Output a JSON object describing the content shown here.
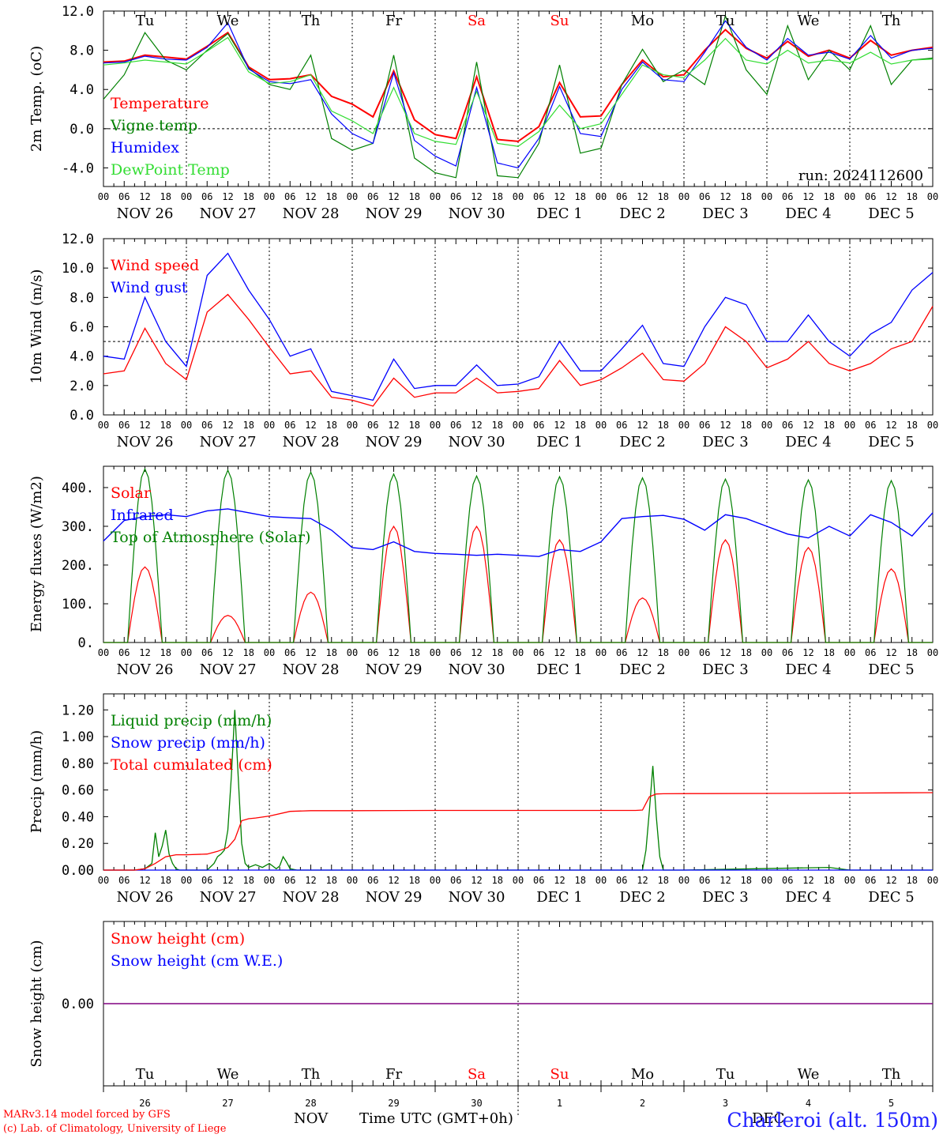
{
  "run_label": "run: 2024112600",
  "footer": {
    "model": "MARv3.14 model forced by GFS",
    "credit": "(c) Lab. of Climatology, University of Liege"
  },
  "station": "Charleroi (alt. 150m)",
  "time_axis_label": "Time UTC (GMT+0h)",
  "months": [
    "NOV",
    "DEC"
  ],
  "days": {
    "weekdays": [
      "Tu",
      "We",
      "Th",
      "Fr",
      "Sa",
      "Su",
      "Mo",
      "Tu",
      "We",
      "Th"
    ],
    "weekend_flags": [
      false,
      false,
      false,
      false,
      true,
      true,
      false,
      false,
      false,
      false
    ],
    "dates": [
      "NOV 26",
      "NOV 27",
      "NOV 28",
      "NOV 29",
      "NOV 30",
      "DEC  1",
      "DEC  2",
      "DEC  3",
      "DEC  4",
      "DEC  5"
    ],
    "day_numbers": [
      "26",
      "27",
      "28",
      "29",
      "30",
      "1",
      "2",
      "3",
      "4",
      "5"
    ],
    "hour_ticks": [
      "00",
      "06",
      "12",
      "18"
    ],
    "final_hour": "00"
  },
  "colors": {
    "red": "#ff0000",
    "dark_green": "#008000",
    "blue": "#0000ff",
    "light_green": "#33dd33",
    "purple": "#800080",
    "weekend": "#ff0000"
  },
  "chart_data": [
    {
      "type": "line",
      "ylabel": "2m Temp. (oC)",
      "ylim": [
        -5.9,
        12.0
      ],
      "yticks": [
        -4.0,
        0.0,
        4.0,
        8.0,
        12.0
      ],
      "ytick_labels": [
        "-4.0",
        "0.0",
        "4.0",
        "8.0",
        "12.0"
      ],
      "reference_line": 0.0,
      "x_unit": "hours since 2024-11-26 00 UTC",
      "x": [
        0,
        6,
        12,
        18,
        24,
        30,
        36,
        42,
        48,
        54,
        60,
        66,
        72,
        78,
        84,
        90,
        96,
        102,
        108,
        114,
        120,
        126,
        132,
        138,
        144,
        150,
        156,
        162,
        168,
        174,
        180,
        186,
        192,
        198,
        204,
        210,
        216,
        222,
        228,
        234,
        240
      ],
      "legend_position": "top-left",
      "series": [
        {
          "name": "Temperature",
          "color_key": "red",
          "values": [
            6.8,
            6.9,
            7.5,
            7.3,
            7.1,
            8.4,
            9.8,
            6.3,
            5.0,
            5.1,
            5.5,
            3.3,
            2.5,
            1.2,
            5.9,
            0.9,
            -0.6,
            -1.0,
            5.3,
            -1.1,
            -1.3,
            0.2,
            4.7,
            1.2,
            1.3,
            4.5,
            7.0,
            5.3,
            5.5,
            8.0,
            10.1,
            8.2,
            7.2,
            8.9,
            7.4,
            8.0,
            7.2,
            9.0,
            7.5,
            8.0,
            8.3
          ]
        },
        {
          "name": "Vigne temp",
          "color_key": "dark_green",
          "values": [
            3.0,
            5.5,
            9.8,
            7.0,
            6.0,
            8.0,
            9.7,
            6.2,
            4.5,
            4.0,
            7.5,
            -1.0,
            -2.2,
            -1.5,
            7.5,
            -3.0,
            -4.5,
            -5.0,
            6.8,
            -4.8,
            -5.0,
            -1.5,
            6.5,
            -2.5,
            -2.0,
            4.5,
            8.1,
            4.8,
            6.0,
            4.5,
            11.5,
            6.0,
            3.5,
            10.5,
            5.0,
            8.0,
            6.0,
            10.5,
            4.5,
            7.0,
            7.2
          ]
        },
        {
          "name": "Humidex",
          "color_key": "blue",
          "values": [
            6.7,
            6.8,
            7.4,
            7.1,
            7.0,
            8.3,
            10.8,
            6.1,
            4.8,
            4.6,
            5.0,
            1.5,
            -0.5,
            -1.5,
            5.7,
            -1.2,
            -2.8,
            -3.8,
            4.2,
            -3.5,
            -4.0,
            -1.0,
            4.3,
            -0.5,
            -0.8,
            4.0,
            6.8,
            5.0,
            4.8,
            7.8,
            11.0,
            8.3,
            7.0,
            9.2,
            7.5,
            7.8,
            7.1,
            9.5,
            7.2,
            8.0,
            8.2
          ]
        },
        {
          "name": "DewPoint Temp",
          "color_key": "light_green",
          "values": [
            6.5,
            6.7,
            7.0,
            6.8,
            6.6,
            7.9,
            9.3,
            5.8,
            4.6,
            4.8,
            5.5,
            1.8,
            0.8,
            -0.5,
            4.2,
            -0.5,
            -1.3,
            -1.6,
            3.8,
            -1.5,
            -1.8,
            -0.3,
            2.4,
            0.0,
            0.5,
            3.5,
            6.5,
            5.5,
            5.2,
            7.0,
            9.2,
            7.0,
            6.6,
            8.0,
            6.7,
            7.0,
            6.7,
            7.8,
            6.6,
            7.0,
            7.1
          ]
        }
      ]
    },
    {
      "type": "line",
      "ylabel": "10m Wind (m/s)",
      "ylim": [
        0.0,
        12.0
      ],
      "yticks": [
        0.0,
        2.0,
        4.0,
        6.0,
        8.0,
        10.0,
        12.0
      ],
      "ytick_labels": [
        "0.0",
        "2.0",
        "4.0",
        "6.0",
        "8.0",
        "10.0",
        "12.0"
      ],
      "reference_line": 5.0,
      "x_unit": "hours since 2024-11-26 00 UTC",
      "x": [
        0,
        6,
        12,
        18,
        24,
        30,
        36,
        42,
        48,
        54,
        60,
        66,
        72,
        78,
        84,
        90,
        96,
        102,
        108,
        114,
        120,
        126,
        132,
        138,
        144,
        150,
        156,
        162,
        168,
        174,
        180,
        186,
        192,
        198,
        204,
        210,
        216,
        222,
        228,
        234,
        240
      ],
      "legend_position": "top-left",
      "series": [
        {
          "name": "Wind speed",
          "color_key": "red",
          "values": [
            2.8,
            3.0,
            5.9,
            3.5,
            2.4,
            7.0,
            8.2,
            6.5,
            4.6,
            2.8,
            3.0,
            1.2,
            1.0,
            0.6,
            2.5,
            1.2,
            1.5,
            1.5,
            2.5,
            1.5,
            1.6,
            1.8,
            3.7,
            2.0,
            2.4,
            3.2,
            4.2,
            2.4,
            2.3,
            3.5,
            6.0,
            5.0,
            3.2,
            3.8,
            5.0,
            3.5,
            3.0,
            3.5,
            4.5,
            5.0,
            7.4
          ]
        },
        {
          "name": "Wind gust",
          "color_key": "blue",
          "values": [
            4.0,
            3.8,
            8.0,
            5.0,
            3.3,
            9.5,
            11.0,
            8.5,
            6.5,
            4.0,
            4.5,
            1.6,
            1.3,
            1.0,
            3.8,
            1.8,
            2.0,
            2.0,
            3.4,
            2.0,
            2.1,
            2.6,
            5.0,
            3.0,
            3.0,
            4.5,
            6.1,
            3.5,
            3.3,
            6.0,
            8.0,
            7.5,
            5.0,
            5.0,
            6.8,
            5.0,
            4.0,
            5.5,
            6.3,
            8.5,
            9.7
          ]
        }
      ]
    },
    {
      "type": "line",
      "ylabel": "Energy fluxes (W/m2)",
      "ylim": [
        0,
        455
      ],
      "yticks": [
        0,
        100,
        200,
        300,
        400
      ],
      "ytick_labels": [
        "0.",
        "100.",
        "200.",
        "300.",
        "400."
      ],
      "x_unit": "hours since 2024-11-26 00 UTC",
      "legend_position": "top-left",
      "diurnal_series": [
        {
          "name": "Solar",
          "color_key": "red",
          "peak_hour": 12,
          "daily_peak_values": [
            195,
            70,
            130,
            300,
            300,
            265,
            115,
            265,
            245,
            190
          ]
        },
        {
          "name": "Top of Atmosphere (Solar)",
          "color_key": "dark_green",
          "peak_hour": 12,
          "daily_peak_values": [
            448,
            445,
            440,
            435,
            430,
            428,
            425,
            422,
            420,
            418
          ]
        }
      ],
      "series": [
        {
          "name": "Infrared",
          "color_key": "blue",
          "x": [
            0,
            6,
            12,
            18,
            24,
            30,
            36,
            42,
            48,
            54,
            60,
            66,
            72,
            78,
            84,
            90,
            96,
            102,
            108,
            114,
            120,
            126,
            132,
            138,
            144,
            150,
            156,
            162,
            168,
            174,
            180,
            186,
            192,
            198,
            204,
            210,
            216,
            222,
            228,
            234,
            240
          ],
          "values": [
            262,
            315,
            325,
            330,
            325,
            340,
            345,
            335,
            325,
            322,
            320,
            290,
            245,
            240,
            260,
            235,
            230,
            228,
            225,
            228,
            225,
            222,
            240,
            235,
            260,
            320,
            325,
            328,
            318,
            290,
            330,
            320,
            300,
            280,
            270,
            300,
            275,
            330,
            310,
            275,
            335
          ]
        }
      ]
    },
    {
      "type": "line",
      "ylabel": "Precip (mm/h)",
      "ylim": [
        0.0,
        1.32
      ],
      "yticks": [
        0.0,
        0.2,
        0.4,
        0.6,
        0.8,
        1.0,
        1.2
      ],
      "ytick_labels": [
        "0.00",
        "0.20",
        "0.40",
        "0.60",
        "0.80",
        "1.00",
        "1.20"
      ],
      "x_unit": "hours since 2024-11-26 00 UTC",
      "legend_position": "top-left",
      "series": [
        {
          "name": "Liquid precip (mm/h)",
          "color_key": "dark_green",
          "x": [
            0,
            9,
            12,
            14,
            15,
            16,
            17,
            18,
            19,
            20,
            21,
            22,
            24,
            30,
            32,
            33,
            34,
            35,
            36,
            37,
            38,
            39,
            40,
            41,
            42,
            44,
            46,
            48,
            50,
            51,
            52,
            53,
            54,
            56,
            60,
            72,
            96,
            120,
            144,
            156,
            157,
            158,
            159,
            160,
            161,
            162,
            168,
            210,
            216,
            240
          ],
          "values": [
            0,
            0,
            0.01,
            0.05,
            0.28,
            0.1,
            0.18,
            0.3,
            0.12,
            0.05,
            0.01,
            0,
            0,
            0,
            0.05,
            0.1,
            0.12,
            0.15,
            0.3,
            0.7,
            1.2,
            0.7,
            0.2,
            0.05,
            0.02,
            0.04,
            0.02,
            0.05,
            0.01,
            0.03,
            0.1,
            0.06,
            0.01,
            0,
            0,
            0,
            0,
            0,
            0,
            0,
            0.15,
            0.45,
            0.78,
            0.4,
            0.1,
            0,
            0,
            0.02,
            0,
            0
          ]
        },
        {
          "name": "Snow precip (mm/h)",
          "color_key": "blue",
          "x": [
            0,
            240
          ],
          "values": [
            0,
            0
          ]
        },
        {
          "name": "Total cumulated (cm)",
          "color_key": "red",
          "x": [
            0,
            9,
            12,
            15,
            18,
            21,
            24,
            30,
            33,
            36,
            38,
            40,
            42,
            44,
            48,
            54,
            60,
            72,
            96,
            120,
            144,
            154,
            156,
            158,
            160,
            162,
            170,
            200,
            240
          ],
          "values": [
            0,
            0,
            0.01,
            0.05,
            0.1,
            0.115,
            0.115,
            0.12,
            0.14,
            0.17,
            0.23,
            0.37,
            0.385,
            0.39,
            0.405,
            0.44,
            0.445,
            0.445,
            0.447,
            0.447,
            0.447,
            0.447,
            0.45,
            0.55,
            0.57,
            0.572,
            0.573,
            0.575,
            0.58
          ]
        }
      ]
    },
    {
      "type": "line",
      "ylabel": "Snow height (cm)",
      "ylim": [
        -0.1,
        0.1
      ],
      "yticks": [
        0.0
      ],
      "ytick_labels": [
        "0.00"
      ],
      "x_unit": "hours since 2024-11-26 00 UTC",
      "legend_position": "top-left",
      "series": [
        {
          "name": "Snow height (cm)",
          "color_key": "red",
          "x": [
            0,
            240
          ],
          "values": [
            0,
            0
          ]
        },
        {
          "name": "Snow height (cm W.E.)",
          "color_key": "blue",
          "x": [
            0,
            240
          ],
          "values": [
            0,
            0
          ]
        }
      ]
    }
  ]
}
